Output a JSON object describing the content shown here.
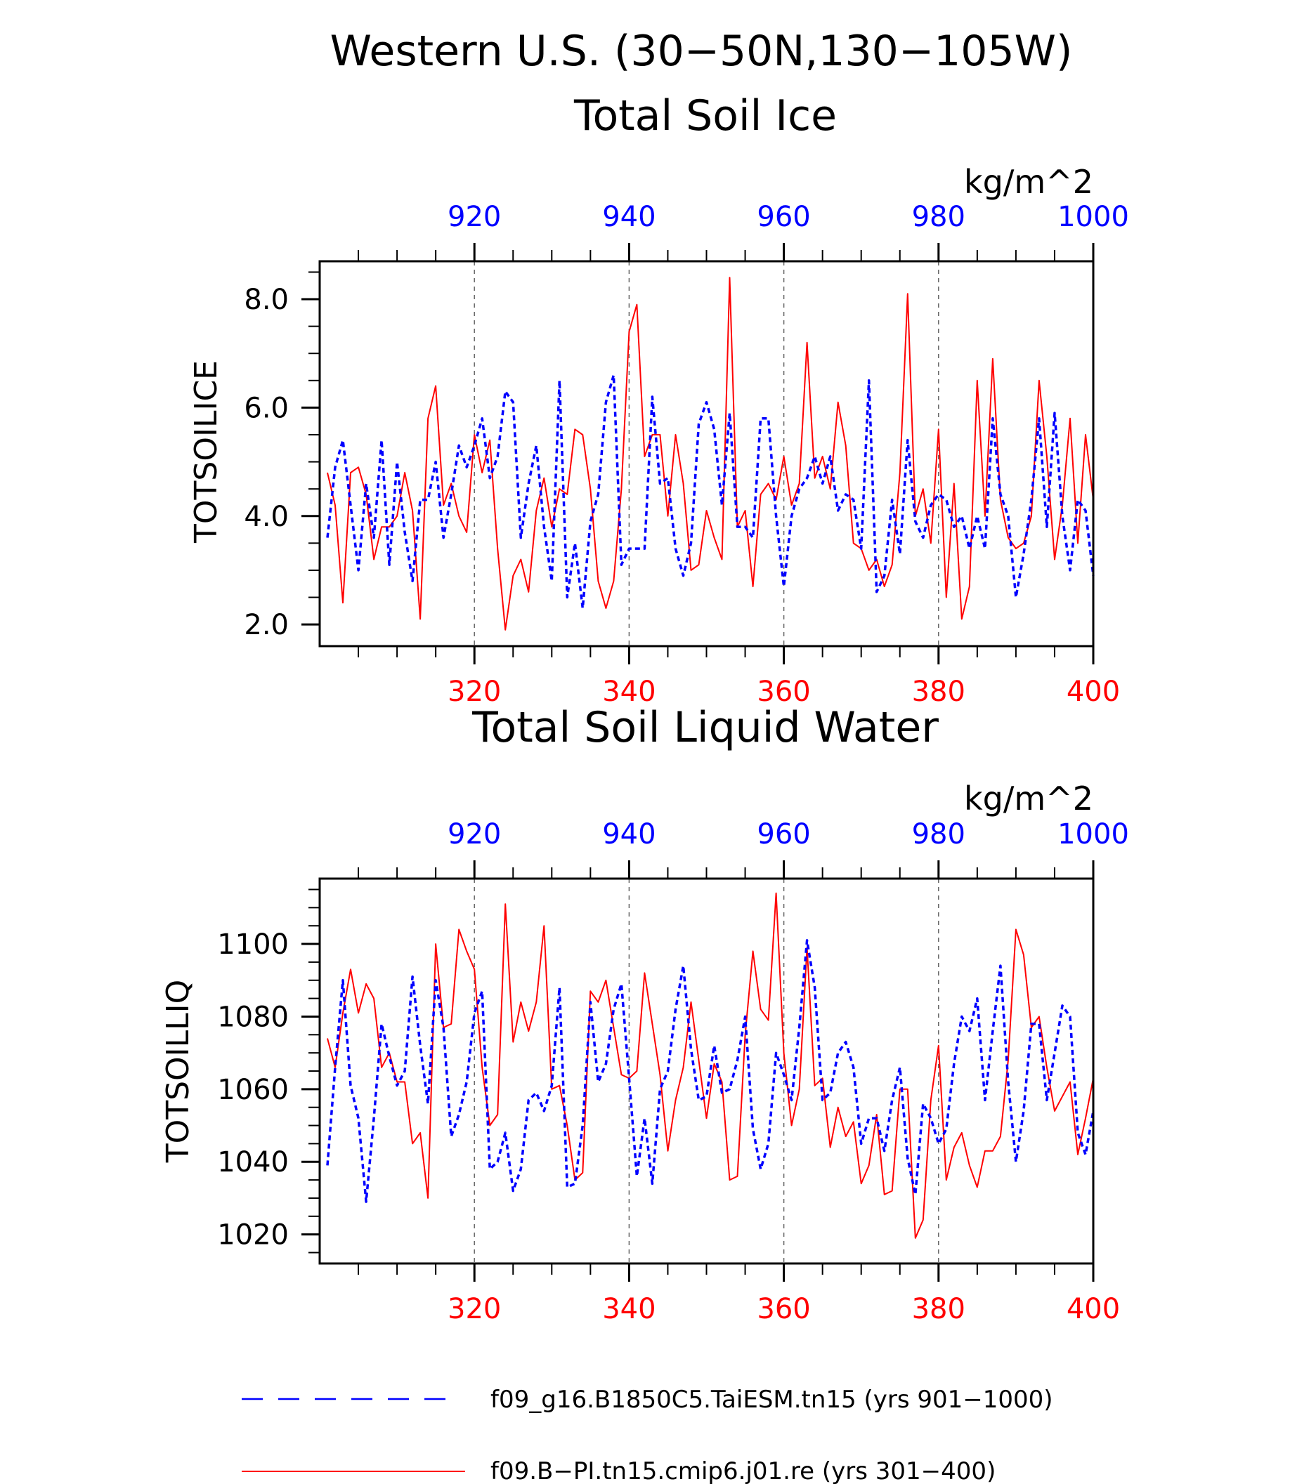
{
  "title_line1": "Western U.S. (30−50N,130−105W)",
  "colors": {
    "red": "#ff0000",
    "blue": "#0000ff",
    "black": "#000000",
    "grid": "#666666"
  },
  "legend": [
    {
      "label": "f09_g16.B1850C5.TaiESM.tn15 (yrs 901−1000)",
      "color": "#0000ff",
      "style": "dashed"
    },
    {
      "label": "f09.B−PI.tn15.cmip6.j01.re (yrs 301−400)",
      "color": "#ff0000",
      "style": "solid"
    }
  ],
  "chart_data": [
    {
      "type": "line",
      "title": "Total Soil Ice",
      "ylabel": "TOTSOILICE",
      "units": "kg/m^2",
      "ylim": [
        1.6,
        8.7
      ],
      "yticks": [
        2.0,
        4.0,
        6.0,
        8.0
      ],
      "ytick_labels": [
        "2.0",
        "4.0",
        "6.0",
        "8.0"
      ],
      "x_bottom": {
        "range": [
          301,
          400
        ],
        "ticks": [
          320,
          340,
          360,
          380,
          400
        ],
        "color": "red"
      },
      "x_top": {
        "range": [
          901,
          1000
        ],
        "ticks": [
          920,
          940,
          960,
          980,
          1000
        ],
        "color": "blue"
      },
      "grid": "vertical dashed at major ticks",
      "series": [
        {
          "name": "f09.B−PI.tn15.cmip6.j01.re (yrs 301−400)",
          "axis": "bottom",
          "color": "red",
          "style": "solid",
          "x_start": 301,
          "values": [
            4.8,
            4.2,
            2.4,
            4.8,
            4.9,
            4.4,
            3.2,
            3.8,
            3.8,
            4.0,
            4.8,
            4.1,
            2.1,
            5.8,
            6.4,
            4.2,
            4.6,
            4.0,
            3.7,
            5.5,
            4.8,
            5.4,
            3.4,
            1.9,
            2.9,
            3.2,
            2.6,
            4.1,
            4.7,
            3.8,
            4.5,
            4.4,
            5.6,
            5.5,
            4.5,
            2.8,
            2.3,
            2.8,
            4.5,
            7.4,
            7.9,
            5.1,
            5.5,
            5.5,
            4.0,
            5.5,
            4.6,
            3.0,
            3.1,
            4.1,
            3.6,
            3.2,
            8.4,
            3.8,
            4.1,
            2.7,
            4.4,
            4.6,
            4.3,
            5.1,
            4.2,
            4.6,
            7.2,
            4.7,
            5.1,
            4.5,
            6.1,
            5.3,
            3.5,
            3.4,
            3.0,
            3.2,
            2.7,
            3.1,
            4.8,
            8.1,
            4.0,
            4.5,
            3.5,
            5.6,
            2.5,
            4.6,
            2.1,
            2.7,
            6.5,
            4.0,
            6.9,
            4.3,
            3.6,
            3.4,
            3.5,
            4.0,
            6.5,
            5.1,
            3.2,
            4.2,
            5.8,
            3.5,
            5.5,
            4.3
          ]
        },
        {
          "name": "f09_g16.B1850C5.TaiESM.tn15 (yrs 901−1000)",
          "axis": "top",
          "color": "blue",
          "style": "dashed",
          "x_start": 901,
          "values": [
            3.6,
            4.9,
            5.4,
            4.2,
            3.0,
            4.6,
            3.6,
            5.4,
            3.1,
            5.0,
            3.7,
            2.8,
            4.3,
            4.3,
            5.0,
            3.6,
            4.4,
            5.3,
            4.9,
            5.3,
            5.8,
            4.7,
            5.1,
            6.3,
            6.1,
            3.6,
            4.6,
            5.3,
            3.8,
            2.8,
            6.5,
            2.5,
            3.5,
            2.3,
            3.9,
            4.4,
            6.1,
            6.6,
            3.1,
            3.4,
            3.4,
            3.4,
            6.2,
            4.6,
            4.7,
            3.4,
            2.9,
            3.5,
            5.7,
            6.1,
            5.6,
            4.2,
            5.9,
            3.8,
            3.8,
            3.6,
            5.8,
            5.8,
            4.0,
            2.7,
            4.0,
            4.5,
            4.7,
            5.1,
            4.6,
            5.1,
            4.1,
            4.4,
            4.3,
            3.4,
            6.5,
            2.6,
            2.9,
            4.3,
            3.3,
            5.4,
            3.9,
            3.6,
            4.2,
            4.4,
            4.3,
            3.8,
            4.0,
            3.4,
            4.0,
            3.4,
            5.8,
            4.4,
            4.0,
            2.5,
            3.3,
            4.3,
            5.8,
            3.8,
            5.9,
            4.0,
            3.0,
            4.3,
            4.1,
            2.9
          ]
        }
      ]
    },
    {
      "type": "line",
      "title": "Total Soil Liquid Water",
      "ylabel": "TOTSOILLIQ",
      "units": "kg/m^2",
      "ylim": [
        1012,
        1118
      ],
      "yticks": [
        1020,
        1040,
        1060,
        1080,
        1100
      ],
      "ytick_labels": [
        "1020",
        "1040",
        "1060",
        "1080",
        "1100"
      ],
      "x_bottom": {
        "range": [
          301,
          400
        ],
        "ticks": [
          320,
          340,
          360,
          380,
          400
        ],
        "color": "red"
      },
      "x_top": {
        "range": [
          901,
          1000
        ],
        "ticks": [
          920,
          940,
          960,
          980,
          1000
        ],
        "color": "blue"
      },
      "grid": "vertical dashed at major ticks",
      "series": [
        {
          "name": "f09.B−PI.tn15.cmip6.j01.re (yrs 301−400)",
          "axis": "bottom",
          "color": "red",
          "style": "solid",
          "x_start": 301,
          "values": [
            1074,
            1066,
            1081,
            1093,
            1081,
            1089,
            1085,
            1066,
            1070,
            1062,
            1062,
            1045,
            1048,
            1030,
            1100,
            1077,
            1078,
            1104,
            1098,
            1093,
            1066,
            1050,
            1053,
            1111,
            1073,
            1084,
            1076,
            1084,
            1105,
            1060,
            1061,
            1050,
            1035,
            1037,
            1087,
            1084,
            1090,
            1077,
            1064,
            1063,
            1065,
            1092,
            1078,
            1064,
            1043,
            1057,
            1066,
            1084,
            1068,
            1052,
            1067,
            1062,
            1035,
            1036,
            1075,
            1098,
            1082,
            1079,
            1114,
            1070,
            1050,
            1060,
            1099,
            1061,
            1063,
            1044,
            1055,
            1047,
            1051,
            1034,
            1039,
            1053,
            1031,
            1032,
            1060,
            1060,
            1019,
            1024,
            1057,
            1072,
            1035,
            1044,
            1048,
            1039,
            1033,
            1043,
            1043,
            1047,
            1068,
            1104,
            1097,
            1077,
            1080,
            1066,
            1054,
            1058,
            1062,
            1042,
            1052,
            1063
          ]
        },
        {
          "name": "f09_g16.B1850C5.TaiESM.tn15 (yrs 901−1000)",
          "axis": "top",
          "color": "blue",
          "style": "dashed",
          "x_start": 901,
          "values": [
            1039,
            1066,
            1090,
            1061,
            1052,
            1029,
            1052,
            1078,
            1069,
            1061,
            1065,
            1091,
            1072,
            1056,
            1090,
            1077,
            1047,
            1053,
            1062,
            1081,
            1087,
            1038,
            1040,
            1048,
            1032,
            1038,
            1057,
            1059,
            1054,
            1061,
            1088,
            1033,
            1034,
            1050,
            1084,
            1062,
            1067,
            1082,
            1089,
            1063,
            1036,
            1052,
            1034,
            1060,
            1065,
            1082,
            1094,
            1071,
            1057,
            1058,
            1072,
            1059,
            1060,
            1068,
            1080,
            1049,
            1038,
            1045,
            1070,
            1064,
            1057,
            1077,
            1101,
            1088,
            1057,
            1059,
            1070,
            1073,
            1066,
            1045,
            1052,
            1052,
            1043,
            1057,
            1066,
            1041,
            1031,
            1056,
            1052,
            1045,
            1049,
            1067,
            1080,
            1076,
            1085,
            1057,
            1076,
            1094,
            1062,
            1040,
            1054,
            1078,
            1078,
            1057,
            1070,
            1083,
            1080,
            1048,
            1042,
            1054
          ]
        }
      ]
    }
  ]
}
